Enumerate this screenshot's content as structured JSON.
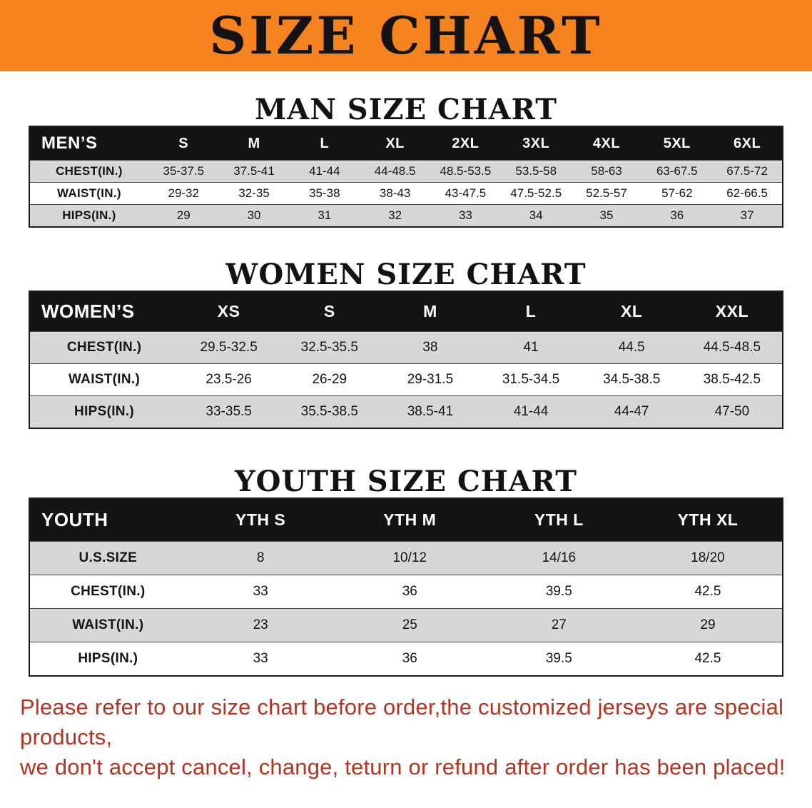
{
  "banner": {
    "title": "SIZE CHART",
    "bg_color": "#f5831f",
    "text_color": "#161412"
  },
  "sections": [
    {
      "heading": "MAN SIZE CHART",
      "table": {
        "header": [
          "MEN’S",
          "S",
          "M",
          "L",
          "XL",
          "2XL",
          "3XL",
          "4XL",
          "5XL",
          "6XL"
        ],
        "rows": [
          [
            "CHEST(IN.)",
            "35-37.5",
            "37.5-41",
            "41-44",
            "44-48.5",
            "48.5-53.5",
            "53.5-58",
            "58-63",
            "63-67.5",
            "67.5-72"
          ],
          [
            "WAIST(IN.)",
            "29-32",
            "32-35",
            "35-38",
            "38-43",
            "43-47.5",
            "47.5-52.5",
            "52.5-57",
            "57-62",
            "62-66.5"
          ],
          [
            "HIPS(IN.)",
            "29",
            "30",
            "31",
            "32",
            "33",
            "34",
            "35",
            "36",
            "37"
          ]
        ]
      }
    },
    {
      "heading": "WOMEN SIZE CHART",
      "table": {
        "header": [
          "WOMEN’S",
          "XS",
          "S",
          "M",
          "L",
          "XL",
          "XXL"
        ],
        "rows": [
          [
            "CHEST(IN.)",
            "29.5-32.5",
            "32.5-35.5",
            "38",
            "41",
            "44.5",
            "44.5-48.5"
          ],
          [
            "WAIST(IN.)",
            "23.5-26",
            "26-29",
            "29-31.5",
            "31.5-34.5",
            "34.5-38.5",
            "38.5-42.5"
          ],
          [
            "HIPS(IN.)",
            "33-35.5",
            "35.5-38.5",
            "38.5-41",
            "41-44",
            "44-47",
            "47-50"
          ]
        ]
      }
    },
    {
      "heading": "YOUTH SIZE CHART",
      "table": {
        "header": [
          "YOUTH",
          "YTH S",
          "YTH M",
          "YTH L",
          "YTH XL"
        ],
        "rows": [
          [
            "U.S.SIZE",
            "8",
            "10/12",
            "14/16",
            "18/20"
          ],
          [
            "CHEST(IN.)",
            "33",
            "36",
            "39.5",
            "42.5"
          ],
          [
            "WAIST(IN.)",
            "23",
            "25",
            "27",
            "29"
          ],
          [
            "HIPS(IN.)",
            "33",
            "36",
            "39.5",
            "42.5"
          ]
        ]
      }
    }
  ],
  "footer": {
    "lines": [
      "Please refer to our size chart before order,the customized jerseys are special products,",
      "we don't accept cancel, change, teturn or refund after order has been placed!"
    ],
    "text_color": "#b5341f"
  },
  "row_shade_color": "#d7d7d7",
  "table_header_bg_color": "#141414"
}
